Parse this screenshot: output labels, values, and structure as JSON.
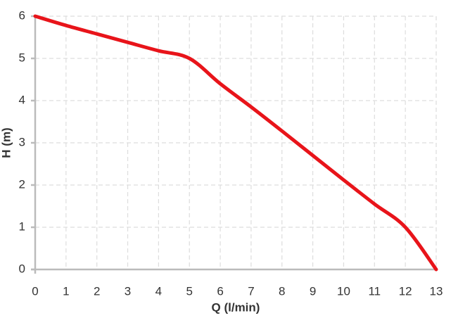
{
  "chart_data": {
    "type": "line",
    "x_label": "Q (l/min)",
    "y_label": "H (m)",
    "x": [
      0,
      1,
      2,
      3,
      4,
      5,
      6,
      7,
      8,
      9,
      10,
      11,
      12,
      13
    ],
    "series": [
      {
        "color": "#e8141a",
        "values": [
          6,
          5.78,
          5.58,
          5.38,
          5.18,
          5.0,
          4.4,
          3.85,
          3.28,
          2.7,
          2.12,
          1.55,
          1.0,
          0
        ]
      }
    ],
    "xlim": [
      0,
      13
    ],
    "xticks": [
      0,
      1,
      2,
      3,
      4,
      5,
      6,
      7,
      8,
      9,
      10,
      11,
      12,
      13
    ],
    "ylim": [
      0,
      6
    ],
    "yticks": [
      0,
      1,
      2,
      3,
      4,
      5,
      6
    ],
    "grid": true
  }
}
